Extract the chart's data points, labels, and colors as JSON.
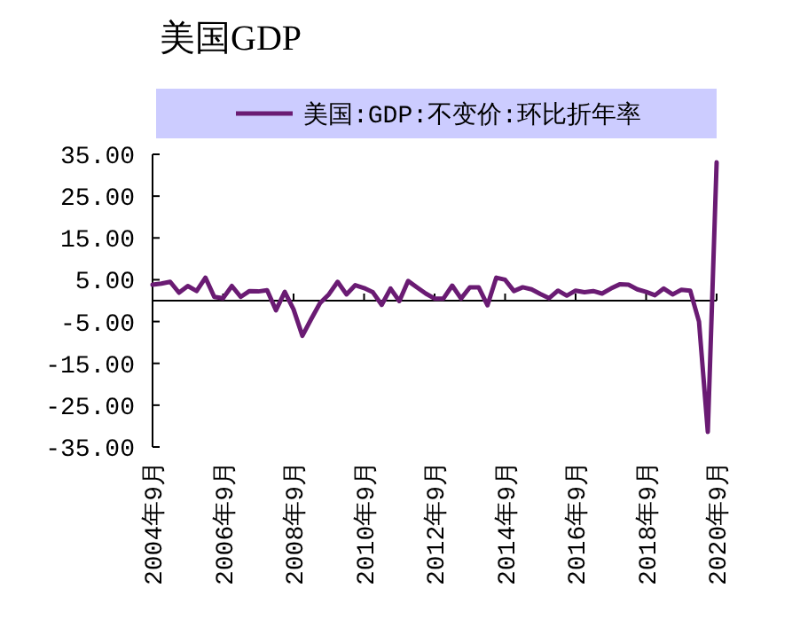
{
  "chart_data": {
    "type": "line",
    "title": "美国GDP",
    "x": [
      "2004-09",
      "2004-12",
      "2005-03",
      "2005-06",
      "2005-09",
      "2005-12",
      "2006-03",
      "2006-06",
      "2006-09",
      "2006-12",
      "2007-03",
      "2007-06",
      "2007-09",
      "2007-12",
      "2008-03",
      "2008-06",
      "2008-09",
      "2008-12",
      "2009-03",
      "2009-06",
      "2009-09",
      "2009-12",
      "2010-03",
      "2010-06",
      "2010-09",
      "2010-12",
      "2011-03",
      "2011-06",
      "2011-09",
      "2011-12",
      "2012-03",
      "2012-06",
      "2012-09",
      "2012-12",
      "2013-03",
      "2013-06",
      "2013-09",
      "2013-12",
      "2014-03",
      "2014-06",
      "2014-09",
      "2014-12",
      "2015-03",
      "2015-06",
      "2015-09",
      "2015-12",
      "2016-03",
      "2016-06",
      "2016-09",
      "2016-12",
      "2017-03",
      "2017-06",
      "2017-09",
      "2017-12",
      "2018-03",
      "2018-06",
      "2018-09",
      "2018-12",
      "2019-03",
      "2019-06",
      "2019-09",
      "2019-12",
      "2020-03",
      "2020-06",
      "2020-09"
    ],
    "series": [
      {
        "name": "美国:GDP:不变价:环比折年率",
        "color": "#6a1b73",
        "values": [
          3.8,
          4.1,
          4.5,
          1.9,
          3.5,
          2.3,
          5.5,
          0.9,
          0.6,
          3.5,
          0.9,
          2.3,
          2.2,
          2.5,
          -2.3,
          2.1,
          -2.1,
          -8.4,
          -4.4,
          -0.6,
          1.5,
          4.5,
          1.5,
          3.7,
          3.0,
          2.0,
          -1.0,
          2.9,
          -0.1,
          4.7,
          3.2,
          1.7,
          0.5,
          0.5,
          3.6,
          0.5,
          3.2,
          3.2,
          -1.1,
          5.5,
          5.0,
          2.3,
          3.2,
          2.7,
          1.6,
          0.6,
          2.4,
          1.2,
          2.4,
          2.0,
          2.3,
          1.7,
          2.9,
          3.9,
          3.8,
          2.7,
          2.1,
          1.3,
          2.9,
          1.5,
          2.6,
          2.4,
          -5.0,
          -31.4,
          33.1
        ]
      }
    ],
    "xlim": [
      "2004-09",
      "2020-09"
    ],
    "xticks": [
      {
        "value": "2004-09",
        "label": "2004年9月"
      },
      {
        "value": "2006-09",
        "label": "2006年9月"
      },
      {
        "value": "2008-09",
        "label": "2008年9月"
      },
      {
        "value": "2010-09",
        "label": "2010年9月"
      },
      {
        "value": "2012-09",
        "label": "2012年9月"
      },
      {
        "value": "2014-09",
        "label": "2014年9月"
      },
      {
        "value": "2016-09",
        "label": "2016年9月"
      },
      {
        "value": "2018-09",
        "label": "2018年9月"
      },
      {
        "value": "2020-09",
        "label": "2020年9月"
      }
    ],
    "ylim": [
      -35,
      35
    ],
    "yticks": [
      {
        "value": 35,
        "label": "35.00"
      },
      {
        "value": 25,
        "label": "25.00"
      },
      {
        "value": 15,
        "label": "15.00"
      },
      {
        "value": 5,
        "label": "5.00"
      },
      {
        "value": -5,
        "label": "-5.00"
      },
      {
        "value": -15,
        "label": "-15.00"
      },
      {
        "value": -25,
        "label": "-25.00"
      },
      {
        "value": -35,
        "label": "-35.00"
      }
    ],
    "legend": "top"
  }
}
